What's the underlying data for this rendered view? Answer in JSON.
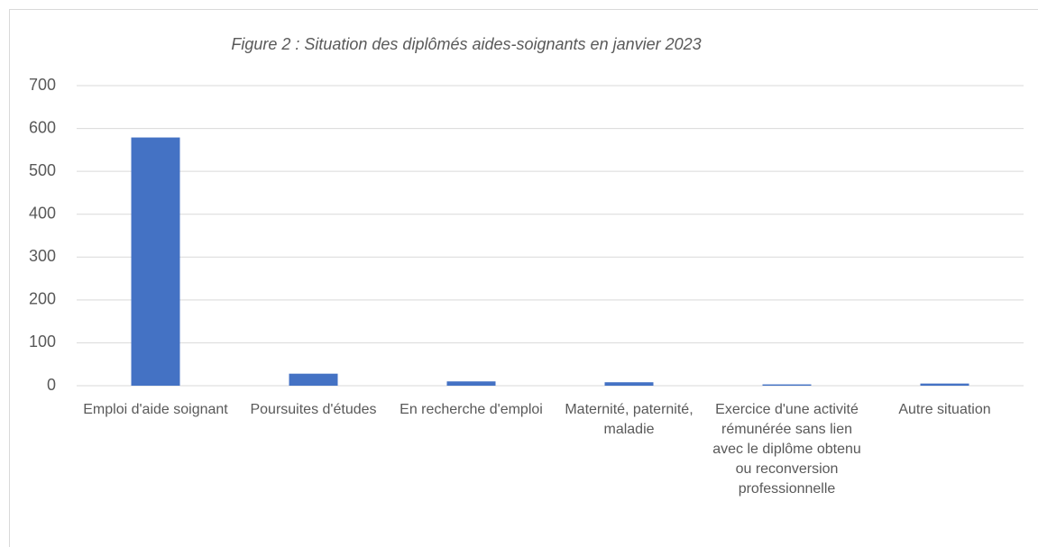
{
  "chart_data": {
    "type": "bar",
    "title": "Figure 2 : Situation des diplômés aides-soignants en janvier 2023",
    "categories": [
      "Emploi d'aide soignant",
      "Poursuites d'études",
      "En recherche d'emploi",
      "Maternité, paternité, maladie",
      "Exercice d'une activité rémunérée sans lien avec le diplôme obtenu ou reconversion professionnelle",
      "Autre situation"
    ],
    "values": [
      579,
      28,
      10,
      8,
      3,
      5
    ],
    "color": "#4472c4",
    "ylim": [
      0,
      700
    ],
    "yticks": [
      0,
      100,
      200,
      300,
      400,
      500,
      600,
      700
    ],
    "grid": true
  }
}
